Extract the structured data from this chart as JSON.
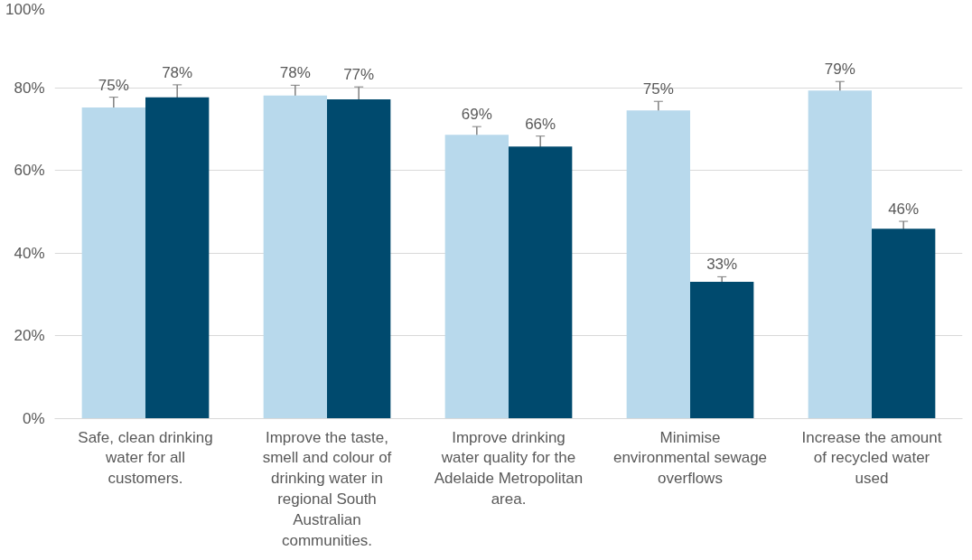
{
  "chart_data": {
    "type": "bar",
    "categories": [
      "Safe, clean drinking water for all customers.",
      "Improve the taste, smell and colour of drinking water in regional South Australian communities.",
      "Improve drinking water quality for the Adelaide Metropolitan area.",
      "Minimise environmental sewage overflows",
      "Increase the amount of recycled water used"
    ],
    "series": [
      {
        "color": "#b8d9ec",
        "values": [
          75.2,
          78.1,
          68.6,
          74.5,
          79.3
        ],
        "errors": [
          2.5,
          2.5,
          2,
          2.2,
          2.2
        ],
        "value_labels": [
          "75%",
          "78%",
          "69%",
          "75%",
          "79%"
        ]
      },
      {
        "color": "#004a6e",
        "values": [
          77.7,
          77.2,
          65.8,
          33.1,
          45.9
        ],
        "errors": [
          3,
          3,
          2.5,
          1.2,
          1.8
        ],
        "value_labels": [
          "78%",
          "77%",
          "66%",
          "33%",
          "46%"
        ]
      }
    ],
    "ylim": [
      0,
      100
    ],
    "yticks": [
      {
        "value": 0,
        "label": "0%"
      },
      {
        "value": 20,
        "label": "20%"
      },
      {
        "value": 40,
        "label": "40%"
      },
      {
        "value": 60,
        "label": "60%"
      },
      {
        "value": 80,
        "label": "80%"
      },
      {
        "value": 100,
        "label": "100%"
      }
    ],
    "grid": "y"
  }
}
